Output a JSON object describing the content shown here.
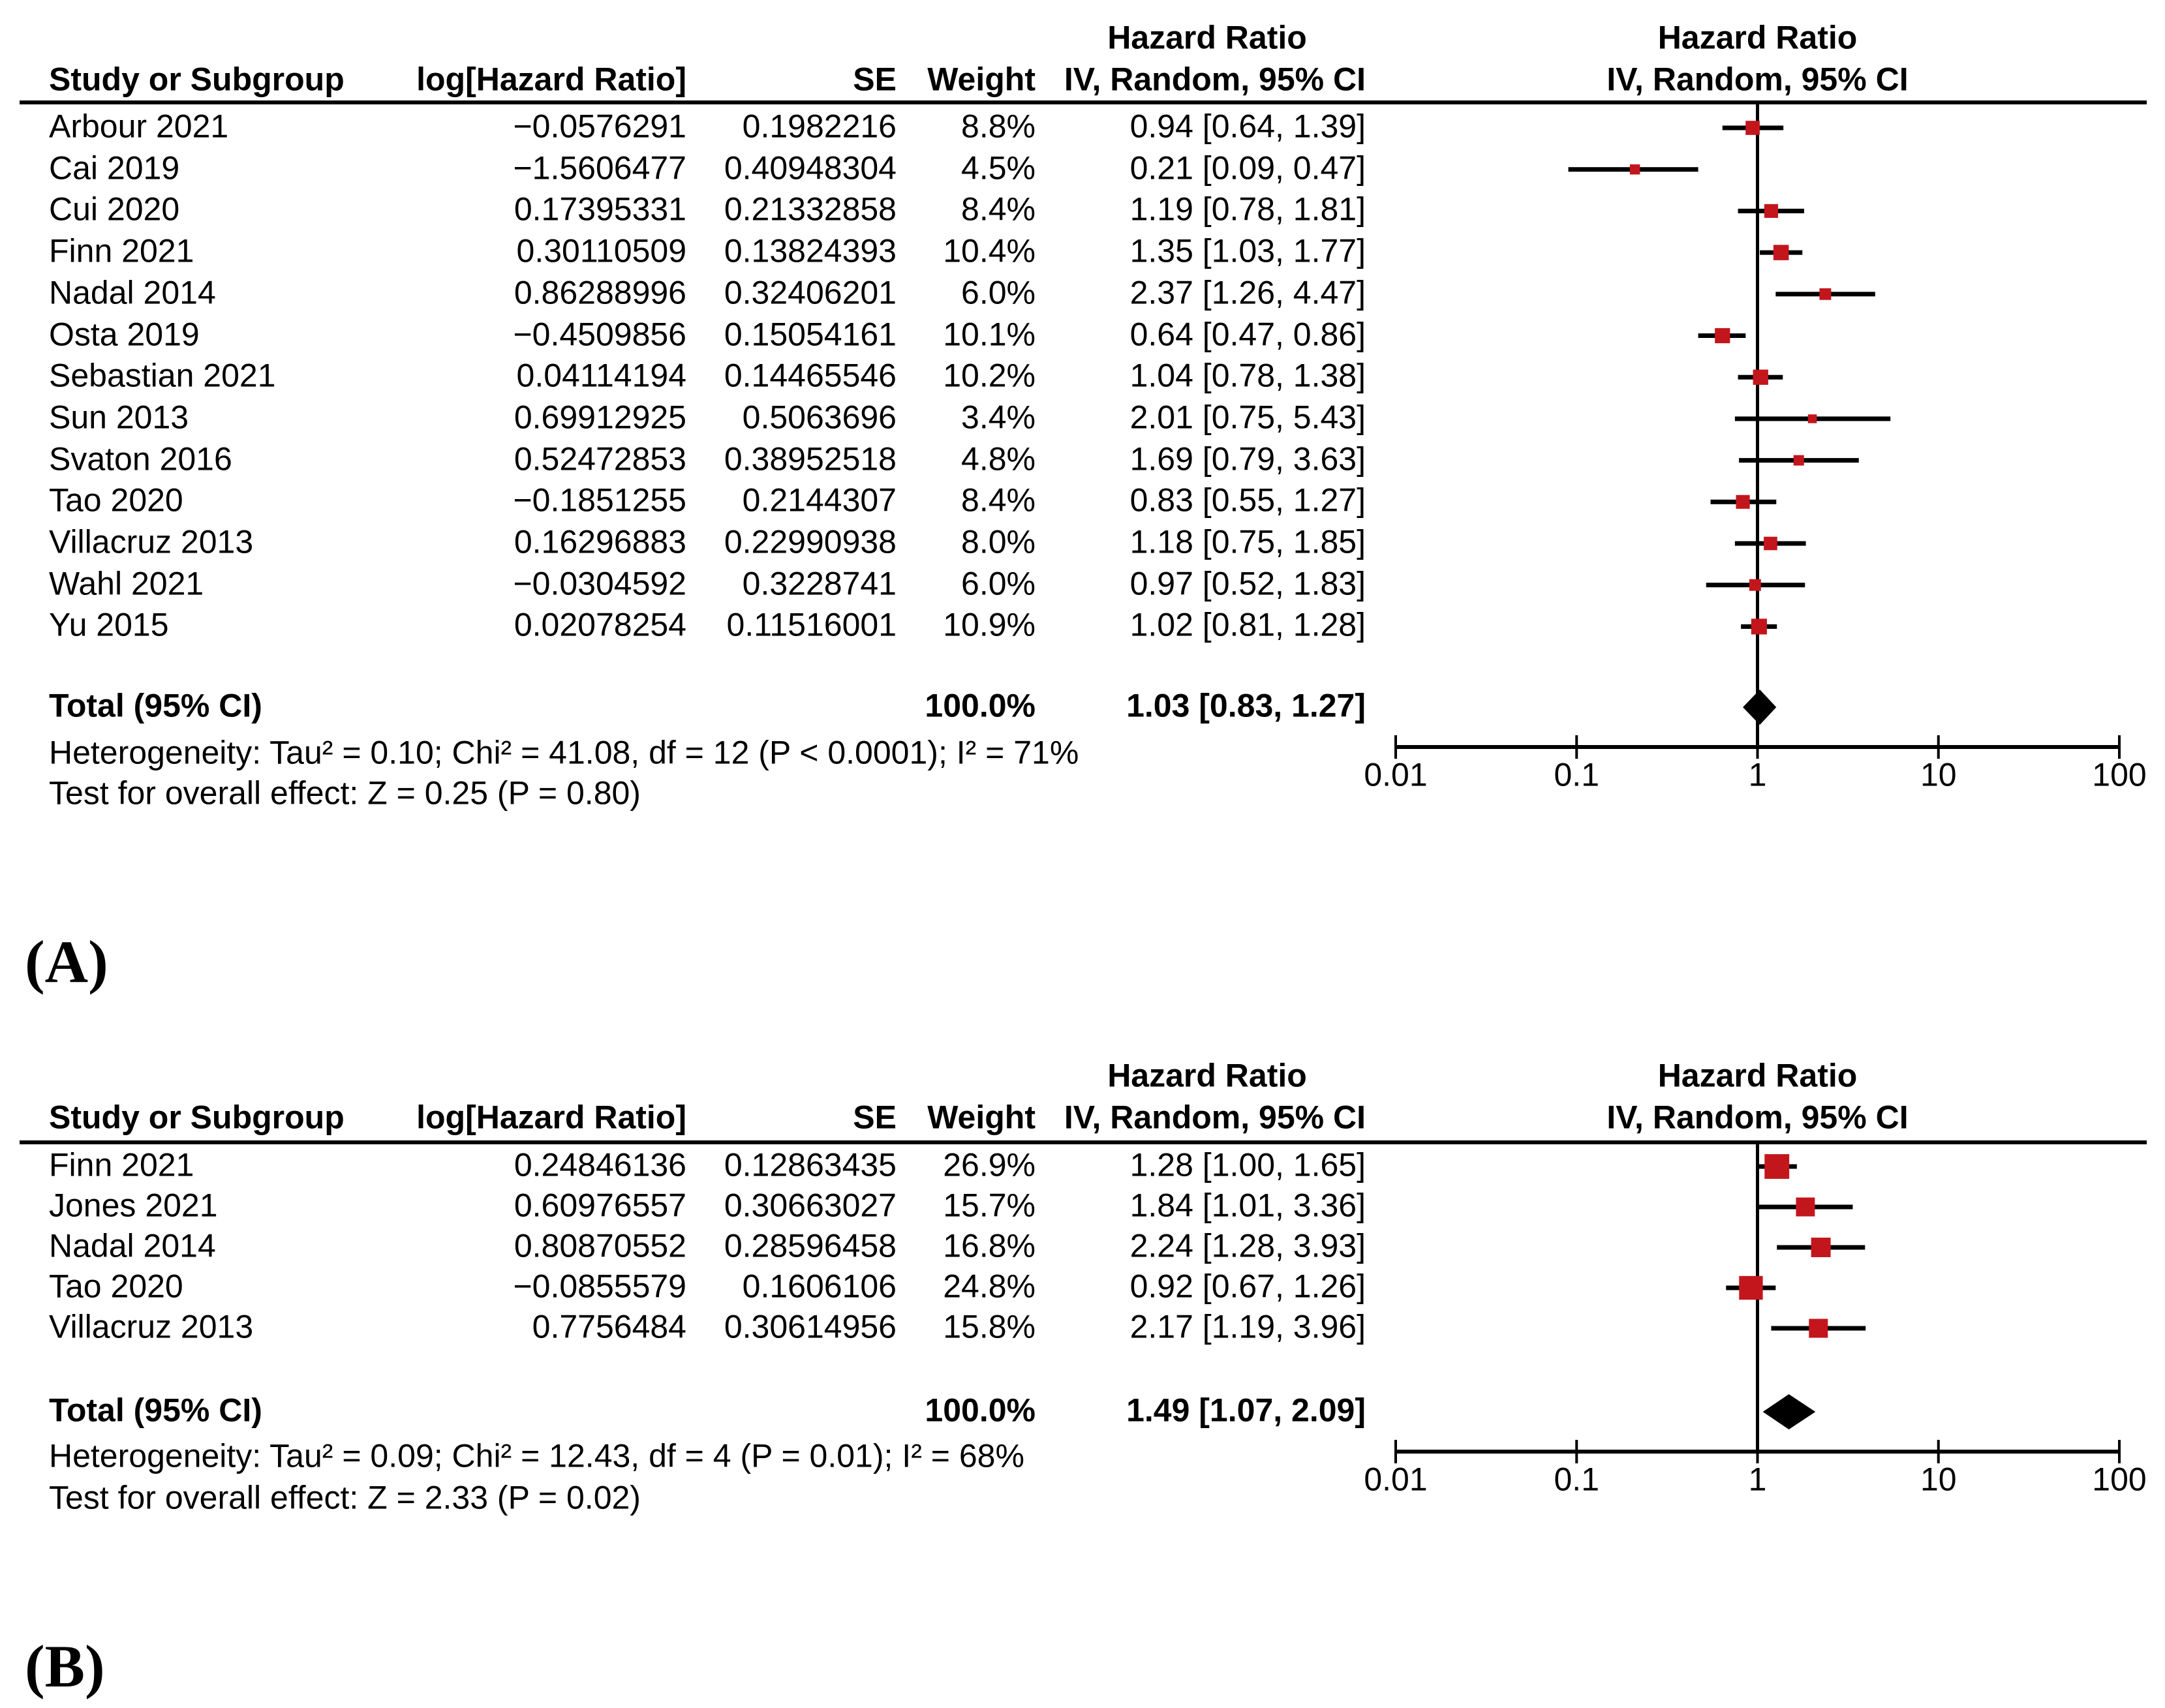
{
  "figure": {
    "panel_a_label": "(A)",
    "panel_b_label": "(B)"
  },
  "colors": {
    "marker": "#C3161C",
    "line": "#000000",
    "text": "#000000"
  },
  "chart_data": [
    {
      "type": "forest",
      "panel": "A",
      "columns": {
        "study": "Study or Subgroup",
        "loghr": "log[Hazard Ratio]",
        "se": "SE",
        "weight": "Weight",
        "ci": "IV, Random, 95% CI"
      },
      "effect_header": "Hazard Ratio",
      "axis": {
        "scale": "log10",
        "ticks": [
          0.01,
          0.1,
          1,
          10,
          100
        ],
        "tick_labels": [
          "0.01",
          "0.1",
          "1",
          "10",
          "100"
        ]
      },
      "studies": [
        {
          "name": "Arbour 2021",
          "log_hr": "−0.0576291",
          "se": "0.1982216",
          "weight_pct": 8.8,
          "weight": "8.8%",
          "hr": 0.94,
          "ci_low": 0.64,
          "ci_high": 1.39,
          "ci_text": "0.94 [0.64, 1.39]"
        },
        {
          "name": "Cai 2019",
          "log_hr": "−1.5606477",
          "se": "0.40948304",
          "weight_pct": 4.5,
          "weight": "4.5%",
          "hr": 0.21,
          "ci_low": 0.09,
          "ci_high": 0.47,
          "ci_text": "0.21 [0.09, 0.47]"
        },
        {
          "name": "Cui 2020",
          "log_hr": "0.17395331",
          "se": "0.21332858",
          "weight_pct": 8.4,
          "weight": "8.4%",
          "hr": 1.19,
          "ci_low": 0.78,
          "ci_high": 1.81,
          "ci_text": "1.19 [0.78, 1.81]"
        },
        {
          "name": "Finn 2021",
          "log_hr": "0.30110509",
          "se": "0.13824393",
          "weight_pct": 10.4,
          "weight": "10.4%",
          "hr": 1.35,
          "ci_low": 1.03,
          "ci_high": 1.77,
          "ci_text": "1.35 [1.03, 1.77]"
        },
        {
          "name": "Nadal 2014",
          "log_hr": "0.86288996",
          "se": "0.32406201",
          "weight_pct": 6.0,
          "weight": "6.0%",
          "hr": 2.37,
          "ci_low": 1.26,
          "ci_high": 4.47,
          "ci_text": "2.37 [1.26, 4.47]"
        },
        {
          "name": "Osta 2019",
          "log_hr": "−0.4509856",
          "se": "0.15054161",
          "weight_pct": 10.1,
          "weight": "10.1%",
          "hr": 0.64,
          "ci_low": 0.47,
          "ci_high": 0.86,
          "ci_text": "0.64 [0.47, 0.86]"
        },
        {
          "name": "Sebastian 2021",
          "log_hr": "0.04114194",
          "se": "0.14465546",
          "weight_pct": 10.2,
          "weight": "10.2%",
          "hr": 1.04,
          "ci_low": 0.78,
          "ci_high": 1.38,
          "ci_text": "1.04 [0.78, 1.38]"
        },
        {
          "name": "Sun 2013",
          "log_hr": "0.69912925",
          "se": "0.5063696",
          "weight_pct": 3.4,
          "weight": "3.4%",
          "hr": 2.01,
          "ci_low": 0.75,
          "ci_high": 5.43,
          "ci_text": "2.01 [0.75, 5.43]"
        },
        {
          "name": "Svaton 2016",
          "log_hr": "0.52472853",
          "se": "0.38952518",
          "weight_pct": 4.8,
          "weight": "4.8%",
          "hr": 1.69,
          "ci_low": 0.79,
          "ci_high": 3.63,
          "ci_text": "1.69 [0.79, 3.63]"
        },
        {
          "name": "Tao 2020",
          "log_hr": "−0.1851255",
          "se": "0.2144307",
          "weight_pct": 8.4,
          "weight": "8.4%",
          "hr": 0.83,
          "ci_low": 0.55,
          "ci_high": 1.27,
          "ci_text": "0.83 [0.55, 1.27]"
        },
        {
          "name": "Villacruz 2013",
          "log_hr": "0.16296883",
          "se": "0.22990938",
          "weight_pct": 8.0,
          "weight": "8.0%",
          "hr": 1.18,
          "ci_low": 0.75,
          "ci_high": 1.85,
          "ci_text": "1.18 [0.75, 1.85]"
        },
        {
          "name": "Wahl 2021",
          "log_hr": "−0.0304592",
          "se": "0.3228741",
          "weight_pct": 6.0,
          "weight": "6.0%",
          "hr": 0.97,
          "ci_low": 0.52,
          "ci_high": 1.83,
          "ci_text": "0.97 [0.52, 1.83]"
        },
        {
          "name": "Yu 2015",
          "log_hr": "0.02078254",
          "se": "0.11516001",
          "weight_pct": 10.9,
          "weight": "10.9%",
          "hr": 1.02,
          "ci_low": 0.81,
          "ci_high": 1.28,
          "ci_text": "1.02 [0.81, 1.28]"
        }
      ],
      "total": {
        "label": "Total (95% CI)",
        "weight": "100.0%",
        "hr": 1.03,
        "ci_low": 0.83,
        "ci_high": 1.27,
        "ci_text": "1.03 [0.83, 1.27]"
      },
      "heterogeneity": "Heterogeneity: Tau² = 0.10; Chi² = 41.08, df = 12 (P < 0.0001); I² = 71%",
      "overall_effect": "Test for overall effect: Z = 0.25 (P = 0.80)"
    },
    {
      "type": "forest",
      "panel": "B",
      "columns": {
        "study": "Study or Subgroup",
        "loghr": "log[Hazard Ratio]",
        "se": "SE",
        "weight": "Weight",
        "ci": "IV, Random, 95% CI"
      },
      "effect_header": "Hazard Ratio",
      "axis": {
        "scale": "log10",
        "ticks": [
          0.01,
          0.1,
          1,
          10,
          100
        ],
        "tick_labels": [
          "0.01",
          "0.1",
          "1",
          "10",
          "100"
        ]
      },
      "studies": [
        {
          "name": "Finn 2021",
          "log_hr": "0.24846136",
          "se": "0.12863435",
          "weight_pct": 26.9,
          "weight": "26.9%",
          "hr": 1.28,
          "ci_low": 1.0,
          "ci_high": 1.65,
          "ci_text": "1.28 [1.00, 1.65]"
        },
        {
          "name": "Jones 2021",
          "log_hr": "0.60976557",
          "se": "0.30663027",
          "weight_pct": 15.7,
          "weight": "15.7%",
          "hr": 1.84,
          "ci_low": 1.01,
          "ci_high": 3.36,
          "ci_text": "1.84 [1.01, 3.36]"
        },
        {
          "name": "Nadal 2014",
          "log_hr": "0.80870552",
          "se": "0.28596458",
          "weight_pct": 16.8,
          "weight": "16.8%",
          "hr": 2.24,
          "ci_low": 1.28,
          "ci_high": 3.93,
          "ci_text": "2.24 [1.28, 3.93]"
        },
        {
          "name": "Tao 2020",
          "log_hr": "−0.0855579",
          "se": "0.1606106",
          "weight_pct": 24.8,
          "weight": "24.8%",
          "hr": 0.92,
          "ci_low": 0.67,
          "ci_high": 1.26,
          "ci_text": "0.92 [0.67, 1.26]"
        },
        {
          "name": "Villacruz 2013",
          "log_hr": "0.7756484",
          "se": "0.30614956",
          "weight_pct": 15.8,
          "weight": "15.8%",
          "hr": 2.17,
          "ci_low": 1.19,
          "ci_high": 3.96,
          "ci_text": "2.17 [1.19, 3.96]"
        }
      ],
      "total": {
        "label": "Total (95% CI)",
        "weight": "100.0%",
        "hr": 1.49,
        "ci_low": 1.07,
        "ci_high": 2.09,
        "ci_text": "1.49 [1.07, 2.09]"
      },
      "heterogeneity": "Heterogeneity: Tau² = 0.09; Chi² = 12.43, df = 4 (P = 0.01); I² = 68%",
      "overall_effect": "Test for overall effect: Z = 2.33 (P = 0.02)"
    }
  ]
}
